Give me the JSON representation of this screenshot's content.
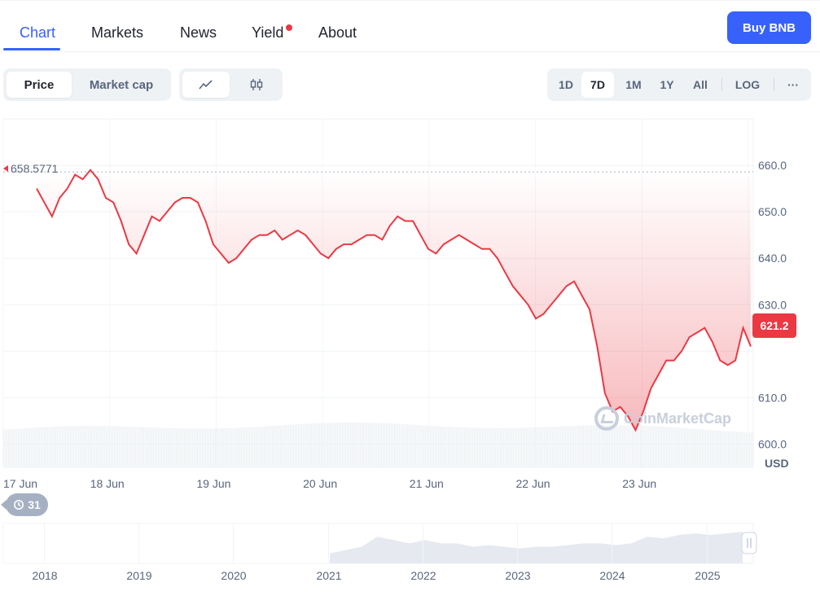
{
  "tabs": [
    "Chart",
    "Markets",
    "News",
    "Yield",
    "About"
  ],
  "buy_button": "Buy BNB",
  "toggle": {
    "price": "Price",
    "market_cap": "Market cap"
  },
  "chart_modes": [
    "line-chart-icon",
    "candlestick-icon"
  ],
  "ranges": [
    "1D",
    "7D",
    "1M",
    "1Y",
    "All",
    "LOG",
    "···"
  ],
  "active_range": "7D",
  "history_badge": "31",
  "start_price_label": "658.5771",
  "current_price_label": "621.2",
  "currency": "USD",
  "watermark": "CoinMarketCap",
  "colors": {
    "accent": "#3861fb",
    "line": "#ea3943",
    "grid": "#eff2f5",
    "text_muted": "#58667e"
  },
  "chart_data": {
    "type": "line",
    "series": [
      {
        "values": [
          655,
          652,
          649,
          653,
          655,
          658,
          657,
          659,
          657,
          653,
          652,
          648,
          643,
          641,
          645,
          649,
          648,
          650,
          652,
          653,
          653,
          652,
          648,
          643,
          641,
          639,
          640,
          642,
          644,
          645,
          645,
          646,
          644,
          645,
          646,
          645,
          643,
          641,
          640,
          642,
          643,
          643,
          644,
          645,
          645,
          644,
          647,
          649,
          648,
          648,
          645,
          642,
          641,
          643,
          644,
          645,
          644,
          643,
          642,
          642,
          640,
          637,
          634,
          632,
          630,
          627,
          628,
          630,
          632,
          634,
          635,
          632,
          629,
          621,
          611,
          607,
          608,
          606,
          603,
          607,
          612,
          615,
          618,
          618,
          620,
          623,
          624,
          625,
          622,
          618,
          617,
          618,
          625,
          621
        ]
      }
    ],
    "x_tick_labels": [
      "17 Jun",
      "18 Jun",
      "19 Jun",
      "20 Jun",
      "21 Jun",
      "22 Jun",
      "23 Jun"
    ],
    "y_tick_labels": [
      "660.0",
      "650.0",
      "640.0",
      "630.0",
      "610.0",
      "600.0"
    ],
    "ylim": [
      595,
      670
    ],
    "reference_line": 658.5771,
    "last_value": 621.2,
    "overview": {
      "x_tick_labels": [
        "2018",
        "2019",
        "2020",
        "2021",
        "2022",
        "2023",
        "2024",
        "2025"
      ],
      "values": [
        0.3,
        0.3,
        0.3,
        0.3,
        0.3,
        0.3,
        0.3,
        0.3,
        0.3,
        0.3,
        0.3,
        0.3,
        0.3,
        0.3,
        0.3,
        0.3,
        0.3,
        0.4,
        0.5,
        0.8,
        0.7,
        0.6,
        0.7,
        0.6,
        0.6,
        0.5,
        0.55,
        0.5,
        0.45,
        0.5,
        0.5,
        0.55,
        0.6,
        0.6,
        0.55,
        0.6,
        0.8,
        0.75,
        0.85,
        0.9,
        0.85,
        0.9,
        0.95
      ]
    }
  }
}
